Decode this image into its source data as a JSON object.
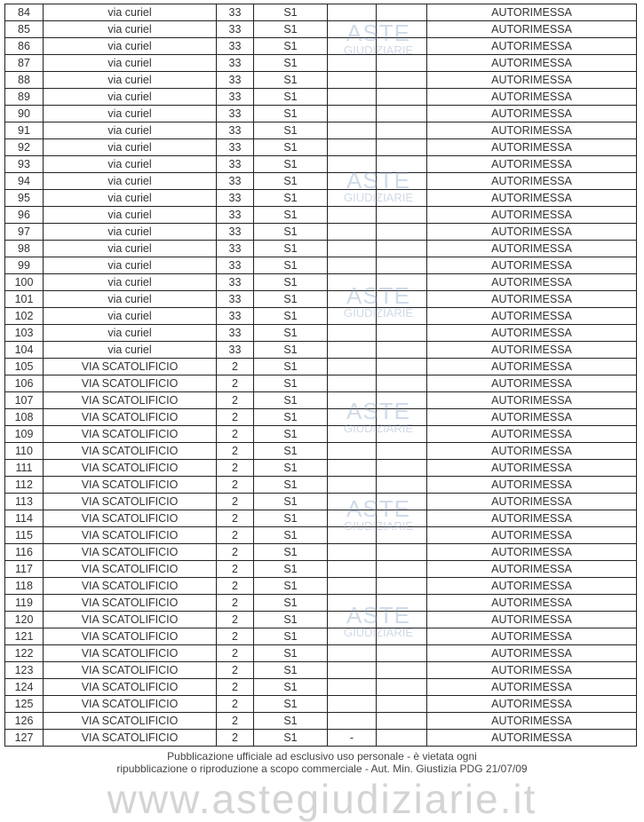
{
  "table": {
    "rows": [
      [
        "84",
        "via curiel",
        "33",
        "S1",
        "",
        "",
        "AUTORIMESSA"
      ],
      [
        "85",
        "via curiel",
        "33",
        "S1",
        "",
        "",
        "AUTORIMESSA"
      ],
      [
        "86",
        "via curiel",
        "33",
        "S1",
        "",
        "",
        "AUTORIMESSA"
      ],
      [
        "87",
        "via curiel",
        "33",
        "S1",
        "",
        "",
        "AUTORIMESSA"
      ],
      [
        "88",
        "via curiel",
        "33",
        "S1",
        "",
        "",
        "AUTORIMESSA"
      ],
      [
        "89",
        "via curiel",
        "33",
        "S1",
        "",
        "",
        "AUTORIMESSA"
      ],
      [
        "90",
        "via curiel",
        "33",
        "S1",
        "",
        "",
        "AUTORIMESSA"
      ],
      [
        "91",
        "via curiel",
        "33",
        "S1",
        "",
        "",
        "AUTORIMESSA"
      ],
      [
        "92",
        "via curiel",
        "33",
        "S1",
        "",
        "",
        "AUTORIMESSA"
      ],
      [
        "93",
        "via curiel",
        "33",
        "S1",
        "",
        "",
        "AUTORIMESSA"
      ],
      [
        "94",
        "via curiel",
        "33",
        "S1",
        "",
        "",
        "AUTORIMESSA"
      ],
      [
        "95",
        "via curiel",
        "33",
        "S1",
        "",
        "",
        "AUTORIMESSA"
      ],
      [
        "96",
        "via curiel",
        "33",
        "S1",
        "",
        "",
        "AUTORIMESSA"
      ],
      [
        "97",
        "via curiel",
        "33",
        "S1",
        "",
        "",
        "AUTORIMESSA"
      ],
      [
        "98",
        "via curiel",
        "33",
        "S1",
        "",
        "",
        "AUTORIMESSA"
      ],
      [
        "99",
        "via curiel",
        "33",
        "S1",
        "",
        "",
        "AUTORIMESSA"
      ],
      [
        "100",
        "via curiel",
        "33",
        "S1",
        "",
        "",
        "AUTORIMESSA"
      ],
      [
        "101",
        "via curiel",
        "33",
        "S1",
        "",
        "",
        "AUTORIMESSA"
      ],
      [
        "102",
        "via curiel",
        "33",
        "S1",
        "",
        "",
        "AUTORIMESSA"
      ],
      [
        "103",
        "via curiel",
        "33",
        "S1",
        "",
        "",
        "AUTORIMESSA"
      ],
      [
        "104",
        "via curiel",
        "33",
        "S1",
        "",
        "",
        "AUTORIMESSA"
      ],
      [
        "105",
        "VIA SCATOLIFICIO",
        "2",
        "S1",
        "",
        "",
        "AUTORIMESSA"
      ],
      [
        "106",
        "VIA SCATOLIFICIO",
        "2",
        "S1",
        "",
        "",
        "AUTORIMESSA"
      ],
      [
        "107",
        "VIA SCATOLIFICIO",
        "2",
        "S1",
        "",
        "",
        "AUTORIMESSA"
      ],
      [
        "108",
        "VIA SCATOLIFICIO",
        "2",
        "S1",
        "",
        "",
        "AUTORIMESSA"
      ],
      [
        "109",
        "VIA SCATOLIFICIO",
        "2",
        "S1",
        "",
        "",
        "AUTORIMESSA"
      ],
      [
        "110",
        "VIA SCATOLIFICIO",
        "2",
        "S1",
        "",
        "",
        "AUTORIMESSA"
      ],
      [
        "111",
        "VIA SCATOLIFICIO",
        "2",
        "S1",
        "",
        "",
        "AUTORIMESSA"
      ],
      [
        "112",
        "VIA SCATOLIFICIO",
        "2",
        "S1",
        "",
        "",
        "AUTORIMESSA"
      ],
      [
        "113",
        "VIA SCATOLIFICIO",
        "2",
        "S1",
        "",
        "",
        "AUTORIMESSA"
      ],
      [
        "114",
        "VIA SCATOLIFICIO",
        "2",
        "S1",
        "",
        "",
        "AUTORIMESSA"
      ],
      [
        "115",
        "VIA SCATOLIFICIO",
        "2",
        "S1",
        "",
        "",
        "AUTORIMESSA"
      ],
      [
        "116",
        "VIA SCATOLIFICIO",
        "2",
        "S1",
        "",
        "",
        "AUTORIMESSA"
      ],
      [
        "117",
        "VIA SCATOLIFICIO",
        "2",
        "S1",
        "",
        "",
        "AUTORIMESSA"
      ],
      [
        "118",
        "VIA SCATOLIFICIO",
        "2",
        "S1",
        "",
        "",
        "AUTORIMESSA"
      ],
      [
        "119",
        "VIA SCATOLIFICIO",
        "2",
        "S1",
        "",
        "",
        "AUTORIMESSA"
      ],
      [
        "120",
        "VIA SCATOLIFICIO",
        "2",
        "S1",
        "",
        "",
        "AUTORIMESSA"
      ],
      [
        "121",
        "VIA SCATOLIFICIO",
        "2",
        "S1",
        "",
        "",
        "AUTORIMESSA"
      ],
      [
        "122",
        "VIA SCATOLIFICIO",
        "2",
        "S1",
        "",
        "",
        "AUTORIMESSA"
      ],
      [
        "123",
        "VIA SCATOLIFICIO",
        "2",
        "S1",
        "",
        "",
        "AUTORIMESSA"
      ],
      [
        "124",
        "VIA SCATOLIFICIO",
        "2",
        "S1",
        "",
        "",
        "AUTORIMESSA"
      ],
      [
        "125",
        "VIA SCATOLIFICIO",
        "2",
        "S1",
        "",
        "",
        "AUTORIMESSA"
      ],
      [
        "126",
        "VIA SCATOLIFICIO",
        "2",
        "S1",
        "",
        "",
        "AUTORIMESSA"
      ],
      [
        "127",
        "VIA SCATOLIFICIO",
        "2",
        "S1",
        "-",
        "",
        "AUTORIMESSA"
      ]
    ]
  },
  "watermark": {
    "brand": "ASTE",
    "sub": "GIUDIZIARIE",
    "site": "www.astegiudiziarie.it"
  },
  "footer": {
    "line1": "Pubblicazione ufficiale ad esclusivo uso personale - è vietata ogni",
    "line2": "ripubblicazione o riproduzione a scopo commerciale - Aut. Min. Giustizia PDG 21/07/09"
  }
}
